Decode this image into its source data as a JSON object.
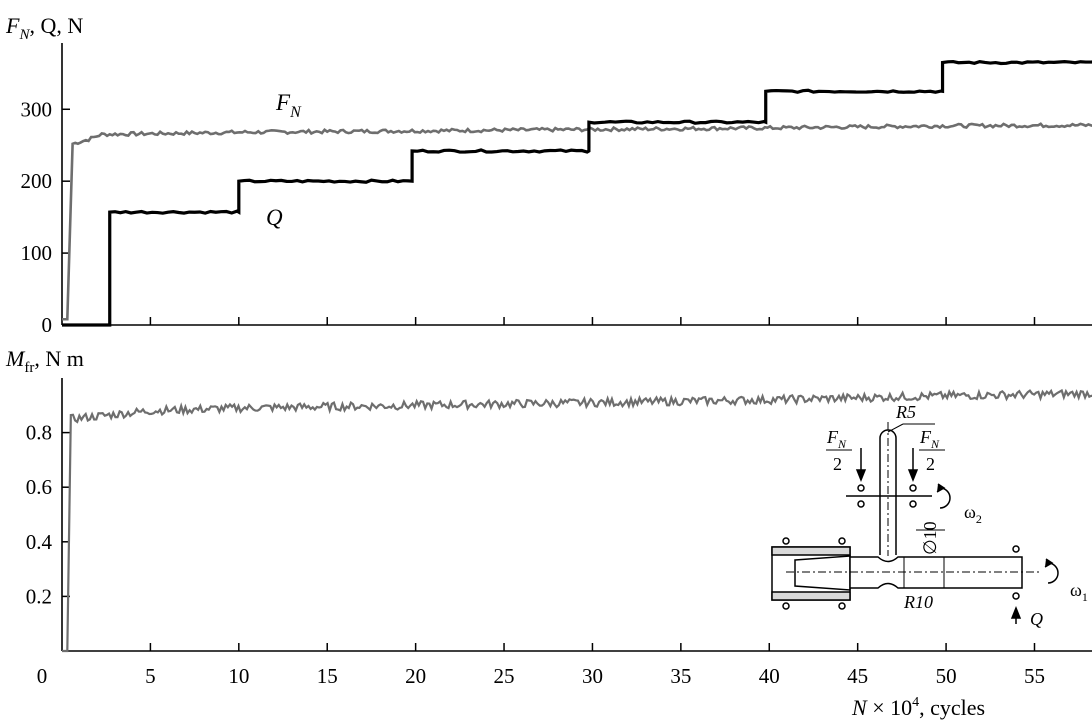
{
  "chart_data": [
    {
      "type": "line",
      "title": "",
      "ylabel": {
        "main": "F",
        "sub": "N",
        "rest": ", Q, N",
        "q": "Q"
      },
      "xlabel": "",
      "xlim": [
        0,
        60
      ],
      "ylim": [
        0,
        400
      ],
      "yticks": [
        "0",
        "100",
        "200",
        "300"
      ],
      "ytick_values": [
        0,
        100,
        200,
        300
      ],
      "grid": false,
      "series": [
        {
          "name": "F_N",
          "label_main": "F",
          "label_sub": "N",
          "color": "#6e6e6e",
          "points": [
            [
              0,
              8
            ],
            [
              0.3,
              8
            ],
            [
              0.6,
              252
            ],
            [
              1.5,
              258
            ],
            [
              2.2,
              265
            ],
            [
              10,
              268
            ],
            [
              20,
              270
            ],
            [
              30,
              272
            ],
            [
              40,
              274
            ],
            [
              50,
              277
            ],
            [
              60,
              278
            ]
          ]
        },
        {
          "name": "Q",
          "label_main": "Q",
          "color": "#000000",
          "steps": [
            [
              0,
              0
            ],
            [
              2.7,
              0
            ],
            [
              2.7,
              157
            ],
            [
              10,
              157
            ],
            [
              10,
              200
            ],
            [
              19.8,
              200
            ],
            [
              19.8,
              242
            ],
            [
              29.8,
              242
            ],
            [
              29.8,
              282
            ],
            [
              39.8,
              282
            ],
            [
              39.8,
              325
            ],
            [
              49.8,
              325
            ],
            [
              49.8,
              365
            ],
            [
              59.6,
              365
            ]
          ]
        }
      ]
    },
    {
      "type": "line",
      "title": "",
      "ylabel": {
        "main": "M",
        "sub": "fr",
        "rest": ", N  m"
      },
      "xlabel": {
        "pre": "N",
        "mid": " × 10",
        "sup": "4",
        "post": ", cycles"
      },
      "xlim": [
        0,
        60
      ],
      "ylim": [
        0,
        1.0
      ],
      "xticks": [
        "0",
        "5",
        "10",
        "15",
        "20",
        "25",
        "30",
        "35",
        "40",
        "45",
        "50",
        "55"
      ],
      "xtick_values": [
        0,
        5,
        10,
        15,
        20,
        25,
        30,
        35,
        40,
        45,
        50,
        55
      ],
      "yticks": [
        "0.2",
        "0.4",
        "0.6",
        "0.8"
      ],
      "ytick_values": [
        0.2,
        0.4,
        0.6,
        0.8
      ],
      "grid": false,
      "series": [
        {
          "name": "M_fr",
          "color": "#6e6e6e",
          "points": [
            [
              0,
              0
            ],
            [
              0.3,
              0
            ],
            [
              0.5,
              0.85
            ],
            [
              5,
              0.88
            ],
            [
              10,
              0.89
            ],
            [
              20,
              0.9
            ],
            [
              30,
              0.91
            ],
            [
              40,
              0.92
            ],
            [
              50,
              0.935
            ],
            [
              60,
              0.945
            ]
          ],
          "noise_amplitude": 0.015
        }
      ]
    }
  ],
  "schematic": {
    "labels": {
      "fn_left_num": "F",
      "fn_left_sub": "N",
      "fn_left_den": "2",
      "fn_right_num": "F",
      "fn_right_sub": "N",
      "fn_right_den": "2",
      "r5": "R5",
      "d10": "∅10",
      "r10": "R10",
      "omega2": "ω",
      "omega2_sub": "2",
      "omega1": "ω",
      "omega1_sub": "1",
      "q": "Q"
    }
  }
}
